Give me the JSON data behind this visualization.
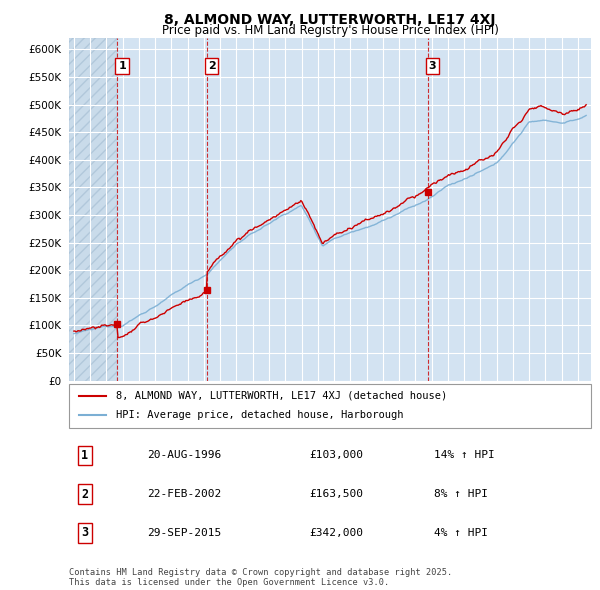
{
  "title": "8, ALMOND WAY, LUTTERWORTH, LE17 4XJ",
  "subtitle": "Price paid vs. HM Land Registry's House Price Index (HPI)",
  "ylim": [
    0,
    620000
  ],
  "yticks": [
    0,
    50000,
    100000,
    150000,
    200000,
    250000,
    300000,
    350000,
    400000,
    450000,
    500000,
    550000,
    600000
  ],
  "sale_prices": [
    103000,
    163500,
    342000
  ],
  "sale_labels": [
    "1",
    "2",
    "3"
  ],
  "sale_pct": [
    "14%",
    "8%",
    "4%"
  ],
  "sale_date_labels": [
    "20-AUG-1996",
    "22-FEB-2002",
    "29-SEP-2015"
  ],
  "sale_price_labels": [
    "£103,000",
    "£163,500",
    "£342,000"
  ],
  "line_color_red": "#cc0000",
  "line_color_blue": "#7bafd4",
  "vline_color": "#cc0000",
  "grid_color": "#d0d8e8",
  "bg_color": "#ffffff",
  "chart_bg": "#dce8f5",
  "hatch_color": "#c8d8e8",
  "hpi_line_label": "HPI: Average price, detached house, Harborough",
  "price_line_label": "8, ALMOND WAY, LUTTERWORTH, LE17 4XJ (detached house)",
  "footer": "Contains HM Land Registry data © Crown copyright and database right 2025.\nThis data is licensed under the Open Government Licence v3.0.",
  "x_start_year": 1994,
  "x_end_year": 2025
}
